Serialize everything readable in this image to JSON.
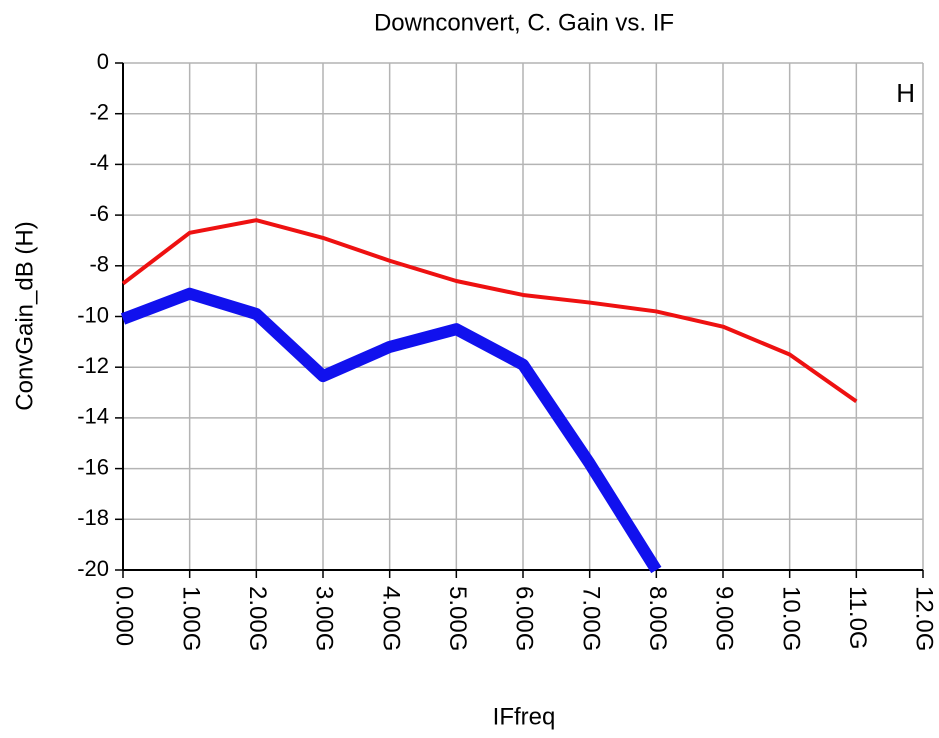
{
  "chart_data": {
    "type": "line",
    "title": "Downconvert, C. Gain vs. IF",
    "x_label": "IFfreq",
    "y_label": "ConvGain_dB  (H)",
    "annotation": "H",
    "annotation_color": "#22ee22",
    "xlim": [
      0,
      12000000000
    ],
    "ylim": [
      -20,
      0
    ],
    "xticks": [
      {
        "value": 0,
        "label": "0.000"
      },
      {
        "value": 1000000000,
        "label": "1.00G"
      },
      {
        "value": 2000000000,
        "label": "2.00G"
      },
      {
        "value": 3000000000,
        "label": "3.00G"
      },
      {
        "value": 4000000000,
        "label": "4.00G"
      },
      {
        "value": 5000000000,
        "label": "5.00G"
      },
      {
        "value": 6000000000,
        "label": "6.00G"
      },
      {
        "value": 7000000000,
        "label": "7.00G"
      },
      {
        "value": 8000000000,
        "label": "8.00G"
      },
      {
        "value": 9000000000,
        "label": "9.00G"
      },
      {
        "value": 10000000000,
        "label": "10.0G"
      },
      {
        "value": 11000000000,
        "label": "11.0G"
      },
      {
        "value": 12000000000,
        "label": "12.0G"
      }
    ],
    "yticks": [
      0,
      -2,
      -4,
      -6,
      -8,
      -10,
      -12,
      -14,
      -16,
      -18,
      -20
    ],
    "grid": true,
    "series": [
      {
        "color": "#ee1111",
        "width": 4,
        "x": [
          0,
          1000000000,
          2000000000,
          3000000000,
          4000000000,
          5000000000,
          6000000000,
          7000000000,
          8000000000,
          9000000000,
          10000000000,
          11000000000
        ],
        "values": [
          -8.7,
          -6.7,
          -6.2,
          -6.9,
          -7.8,
          -8.6,
          -9.15,
          -9.45,
          -9.8,
          -10.4,
          -11.5,
          -13.35
        ]
      },
      {
        "color": "#1111ee",
        "width": 12,
        "x": [
          0,
          1000000000,
          2000000000,
          3000000000,
          4000000000,
          5000000000,
          6000000000,
          7000000000,
          8000000000
        ],
        "values": [
          -10.1,
          -9.1,
          -9.9,
          -12.35,
          -11.2,
          -10.5,
          -11.9,
          -15.8,
          -20
        ]
      }
    ]
  }
}
